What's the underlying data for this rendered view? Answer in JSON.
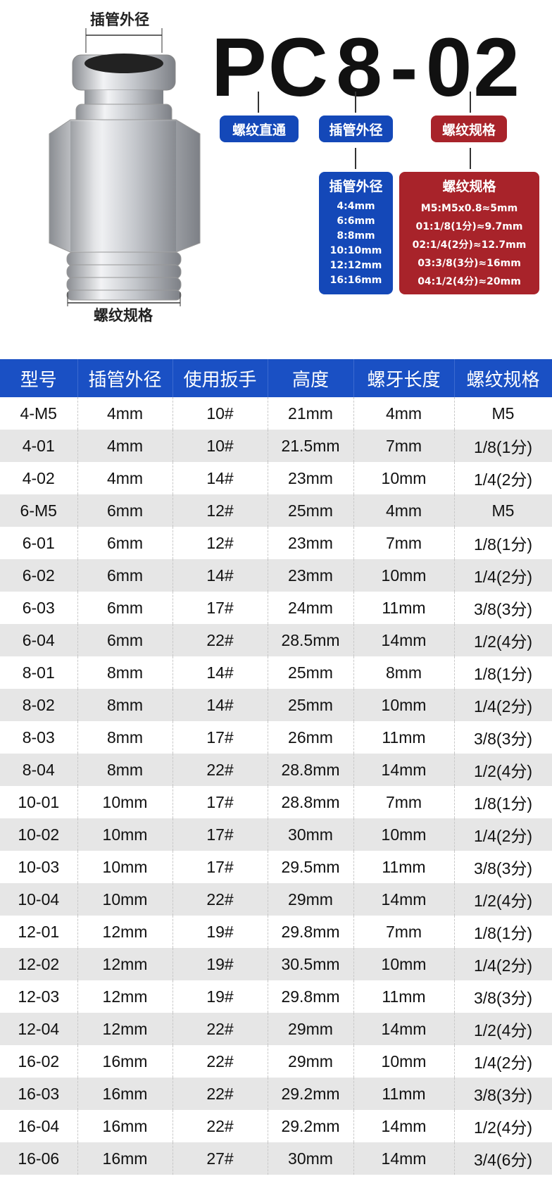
{
  "diagram": {
    "top_label": "插管外径",
    "bottom_label": "螺纹规格"
  },
  "code": {
    "prefix": "PC",
    "size": "8",
    "dash": "-",
    "thread": "02"
  },
  "tags": [
    "螺纹直通",
    "插管外径",
    "螺纹规格"
  ],
  "tube_box": {
    "title": "插管外径",
    "items": [
      "4:4mm",
      "6:6mm",
      "8:8mm",
      "10:10mm",
      "12:12mm",
      "16:16mm"
    ]
  },
  "thread_box": {
    "title": "螺纹规格",
    "items": [
      "M5:M5x0.8≈5mm",
      "01:1/8(1分)≈9.7mm",
      "02:1/4(2分)≈12.7mm",
      "03:3/8(3分)≈16mm",
      "04:1/2(4分)≈20mm"
    ]
  },
  "colors": {
    "blue": "#1a50c4",
    "red": "#a8232a"
  },
  "table": {
    "headers": [
      "型号",
      "插管外径",
      "使用扳手",
      "高度",
      "螺牙长度",
      "螺纹规格"
    ],
    "rows": [
      [
        "4-M5",
        "4mm",
        "10#",
        "21mm",
        "4mm",
        "M5"
      ],
      [
        "4-01",
        "4mm",
        "10#",
        "21.5mm",
        "7mm",
        "1/8(1分)"
      ],
      [
        "4-02",
        "4mm",
        "14#",
        "23mm",
        "10mm",
        "1/4(2分)"
      ],
      [
        "6-M5",
        "6mm",
        "12#",
        "25mm",
        "4mm",
        "M5"
      ],
      [
        "6-01",
        "6mm",
        "12#",
        "23mm",
        "7mm",
        "1/8(1分)"
      ],
      [
        "6-02",
        "6mm",
        "14#",
        "23mm",
        "10mm",
        "1/4(2分)"
      ],
      [
        "6-03",
        "6mm",
        "17#",
        "24mm",
        "11mm",
        "3/8(3分)"
      ],
      [
        "6-04",
        "6mm",
        "22#",
        "28.5mm",
        "14mm",
        "1/2(4分)"
      ],
      [
        "8-01",
        "8mm",
        "14#",
        "25mm",
        "8mm",
        "1/8(1分)"
      ],
      [
        "8-02",
        "8mm",
        "14#",
        "25mm",
        "10mm",
        "1/4(2分)"
      ],
      [
        "8-03",
        "8mm",
        "17#",
        "26mm",
        "11mm",
        "3/8(3分)"
      ],
      [
        "8-04",
        "8mm",
        "22#",
        "28.8mm",
        "14mm",
        "1/2(4分)"
      ],
      [
        "10-01",
        "10mm",
        "17#",
        "28.8mm",
        "7mm",
        "1/8(1分)"
      ],
      [
        "10-02",
        "10mm",
        "17#",
        "30mm",
        "10mm",
        "1/4(2分)"
      ],
      [
        "10-03",
        "10mm",
        "17#",
        "29.5mm",
        "11mm",
        "3/8(3分)"
      ],
      [
        "10-04",
        "10mm",
        "22#",
        "29mm",
        "14mm",
        "1/2(4分)"
      ],
      [
        "12-01",
        "12mm",
        "19#",
        "29.8mm",
        "7mm",
        "1/8(1分)"
      ],
      [
        "12-02",
        "12mm",
        "19#",
        "30.5mm",
        "10mm",
        "1/4(2分)"
      ],
      [
        "12-03",
        "12mm",
        "19#",
        "29.8mm",
        "11mm",
        "3/8(3分)"
      ],
      [
        "12-04",
        "12mm",
        "22#",
        "29mm",
        "14mm",
        "1/2(4分)"
      ],
      [
        "16-02",
        "16mm",
        "22#",
        "29mm",
        "10mm",
        "1/4(2分)"
      ],
      [
        "16-03",
        "16mm",
        "22#",
        "29.2mm",
        "11mm",
        "3/8(3分)"
      ],
      [
        "16-04",
        "16mm",
        "22#",
        "29.2mm",
        "14mm",
        "1/2(4分)"
      ],
      [
        "16-06",
        "16mm",
        "27#",
        "30mm",
        "14mm",
        "3/4(6分)"
      ]
    ]
  }
}
